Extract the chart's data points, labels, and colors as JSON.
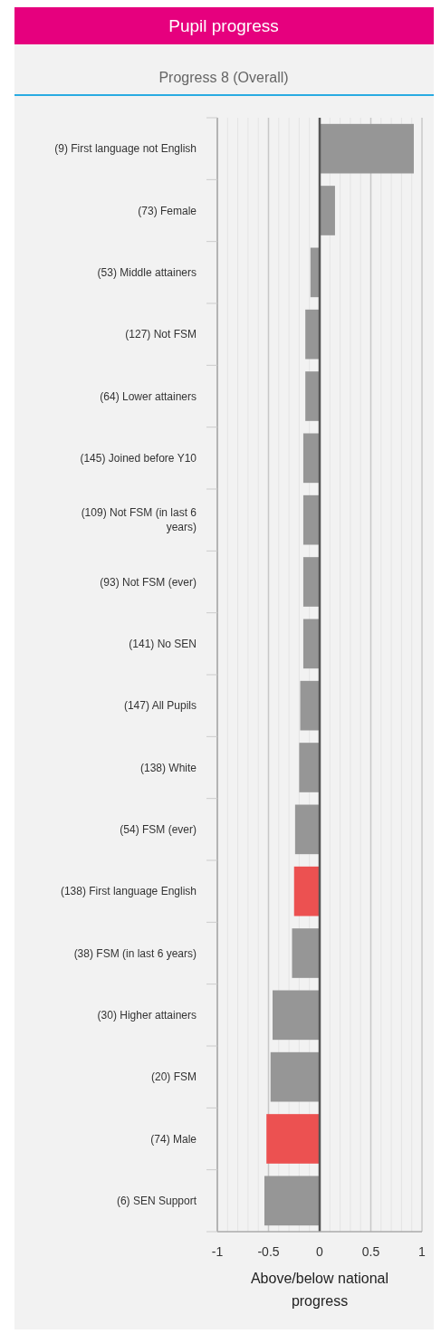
{
  "chart_data": {
    "type": "bar",
    "orientation": "horizontal",
    "title": "Pupil progress",
    "subtitle": "Progress 8 (Overall)",
    "xlabel": "Above/below national progress",
    "categories": [
      "(9) First language not English",
      "(73) Female",
      "(53) Middle attainers",
      "(127) Not FSM",
      "(64) Lower attainers",
      "(145) Joined before Y10",
      "(109) Not FSM (in last 6 years)",
      "(93) Not FSM (ever)",
      "(141) No SEN",
      "(147) All Pupils",
      "(138) White",
      "(54) FSM (ever)",
      "(138) First language English",
      "(38) FSM (in last 6 years)",
      "(30) Higher attainers",
      "(20) FSM",
      "(74) Male",
      "(6) SEN Support"
    ],
    "values": [
      0.92,
      0.15,
      -0.09,
      -0.14,
      -0.14,
      -0.16,
      -0.16,
      -0.16,
      -0.16,
      -0.19,
      -0.2,
      -0.24,
      -0.25,
      -0.27,
      -0.46,
      -0.48,
      -0.52,
      -0.54
    ],
    "colors": [
      "#969696",
      "#969696",
      "#969696",
      "#969696",
      "#969696",
      "#969696",
      "#969696",
      "#969696",
      "#969696",
      "#969696",
      "#969696",
      "#969696",
      "#ec5151",
      "#969696",
      "#969696",
      "#969696",
      "#ec5151",
      "#969696"
    ],
    "xlim": [
      -1,
      1
    ],
    "xticks": [
      -1,
      {
        "value": -0.9,
        "label": null
      },
      {
        "value": -0.8,
        "label": null
      },
      {
        "value": -0.7,
        "label": null
      },
      {
        "value": -0.6,
        "label": null
      },
      -0.5,
      {
        "value": -0.4,
        "label": null
      },
      {
        "value": -0.3,
        "label": null
      },
      {
        "value": -0.2,
        "label": null
      },
      {
        "value": -0.1,
        "label": null
      },
      0,
      {
        "value": 0.1,
        "label": null
      },
      {
        "value": 0.2,
        "label": null
      },
      {
        "value": 0.3,
        "label": null
      },
      {
        "value": 0.4,
        "label": null
      },
      0.5,
      {
        "value": 0.6,
        "label": null
      },
      {
        "value": 0.7,
        "label": null
      },
      {
        "value": 0.8,
        "label": null
      },
      {
        "value": 0.9,
        "label": null
      },
      1
    ],
    "grid": "x"
  }
}
